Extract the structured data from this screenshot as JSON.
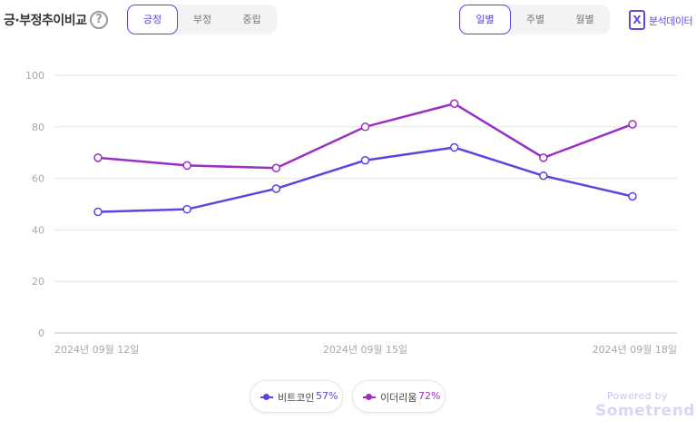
{
  "header": {
    "title": "긍·부정추이비교",
    "help_glyph": "?",
    "sentiment_tabs": [
      "긍정",
      "부정",
      "중립"
    ],
    "sentiment_active": "긍정",
    "period_tabs": [
      "일별",
      "주별",
      "월별"
    ],
    "period_active": "일별",
    "export_label": "분석데이터",
    "export_icon": "excel-icon"
  },
  "chart_data": {
    "type": "line",
    "x": [
      "2024년 09월 12일",
      "2024년 09월 13일",
      "2024년 09월 14일",
      "2024년 09월 15일",
      "2024년 09월 16일",
      "2024년 09월 17일",
      "2024년 09월 18일"
    ],
    "x_tick_labels": [
      "2024년 09월 12일",
      "2024년 09월 15일",
      "2024년 09월 18일"
    ],
    "y_ticks": [
      0,
      20,
      40,
      60,
      80,
      100
    ],
    "ylim": [
      0,
      100
    ],
    "grid": true,
    "legend_position": "bottom",
    "series": [
      {
        "name": "비트코인",
        "percent": "57%",
        "color": "#5945df",
        "values": [
          47,
          48,
          56,
          67,
          72,
          61,
          53
        ]
      },
      {
        "name": "이더리움",
        "percent": "72%",
        "color": "#9b2fc4",
        "values": [
          68,
          65,
          64,
          80,
          89,
          68,
          81
        ]
      }
    ]
  },
  "footer": {
    "powered_by": "Powered by",
    "brand": "Sometrend"
  }
}
